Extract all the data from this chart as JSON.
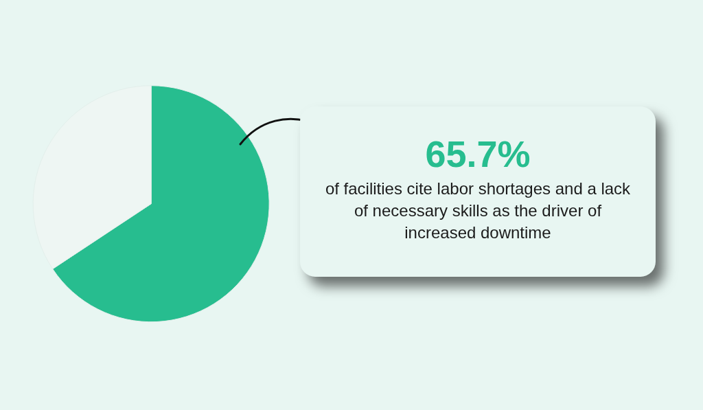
{
  "chart_data": {
    "type": "pie",
    "categories": [
      null,
      null
    ],
    "values": [
      65.7,
      34.3
    ],
    "colors": [
      "#27bd8f",
      "#eef6f3"
    ],
    "annotations": [
      "65.7%",
      "of facilities cite labor shortages and a lack of necessary skills as the driver of increased downtime"
    ]
  }
}
